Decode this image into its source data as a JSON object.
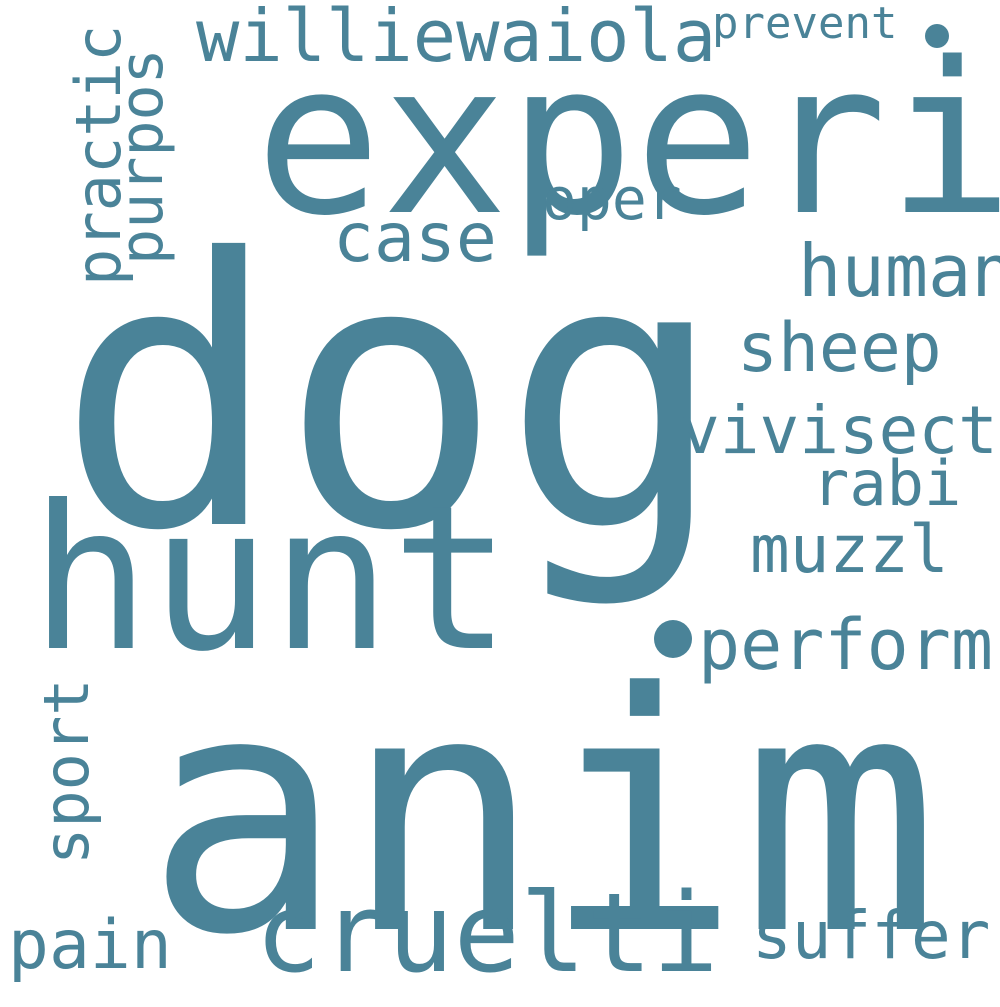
{
  "theme": {
    "word_color": "#4a8398",
    "background": "#ffffff"
  },
  "words": {
    "dog": "dog",
    "anim": "anim",
    "experi": "experi",
    "hunt": "hunt",
    "cruelti": "cruelti",
    "williewaiola": "williewaiola",
    "prevent": "prevent",
    "practic": "practic",
    "purpos": "purpos",
    "oper": "oper",
    "case": "case",
    "human": "human",
    "sheep": "sheep",
    "vivisect": "vivisect",
    "rabi": "rabi",
    "muzzl": "muzzl",
    "perform": "perform",
    "sport": "sport",
    "pain": "pain",
    "suffer": "suffer"
  }
}
